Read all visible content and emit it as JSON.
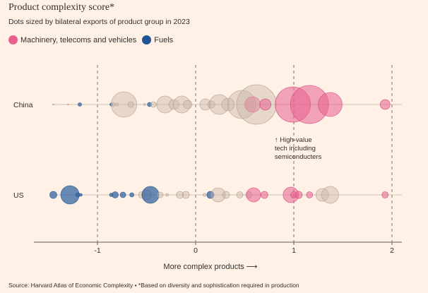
{
  "title": "Product complexity score*",
  "subtitle": "Dots sized by bilateral exports of product group in 2023",
  "source": "Source: Harvard Atlas of Economic Complexity • *Based on diversity and sophistication required in production",
  "colors": {
    "machinery": "#e8608f",
    "fuels": "#3566a0",
    "other": "#c9b8a8",
    "grid": "#7b7470",
    "axis": "#66605c",
    "background": "#fff1e5"
  },
  "legend": [
    {
      "label": "Machinery, telecoms and vehicles",
      "color": "#e8608f"
    },
    {
      "label": "Fuels",
      "color": "#1f5596"
    }
  ],
  "chart_data": {
    "type": "scatter",
    "title": "Product complexity score*",
    "xlabel": "More complex products ⟶",
    "ylabel": "",
    "xlim": [
      -1.6,
      2.1
    ],
    "xticks": [
      -1,
      0,
      1,
      2
    ],
    "xtick_labels": [
      "-1",
      "0",
      "1",
      "2"
    ],
    "grid": "vertical dashed",
    "legend_position": "top-left",
    "categories": [
      "China",
      "US"
    ],
    "annotation": {
      "text": [
        "↑ High-value",
        "tech including",
        "semiconducters"
      ],
      "x": 0.97,
      "category": "China"
    },
    "series": [
      {
        "category": "China",
        "points": [
          {
            "x": -1.45,
            "r": 0.8,
            "group": "other"
          },
          {
            "x": -1.3,
            "r": 0.8,
            "group": "other"
          },
          {
            "x": -1.18,
            "r": 2.5,
            "group": "fuels"
          },
          {
            "x": -0.86,
            "r": 2,
            "group": "fuels"
          },
          {
            "x": -0.84,
            "r": 3,
            "group": "other"
          },
          {
            "x": -0.8,
            "r": 2,
            "group": "other"
          },
          {
            "x": -0.73,
            "r": 18,
            "group": "other"
          },
          {
            "x": -0.66,
            "r": 4,
            "group": "other"
          },
          {
            "x": -0.52,
            "r": 1.5,
            "group": "other"
          },
          {
            "x": -0.47,
            "r": 3,
            "group": "fuels"
          },
          {
            "x": -0.43,
            "r": 4,
            "group": "other"
          },
          {
            "x": -0.31,
            "r": 12,
            "group": "other"
          },
          {
            "x": -0.22,
            "r": 7,
            "group": "other"
          },
          {
            "x": -0.14,
            "r": 12,
            "group": "other"
          },
          {
            "x": -0.08,
            "r": 6,
            "group": "other"
          },
          {
            "x": 0.1,
            "r": 8,
            "group": "other"
          },
          {
            "x": 0.16,
            "r": 5,
            "group": "other"
          },
          {
            "x": 0.24,
            "r": 14,
            "group": "other"
          },
          {
            "x": 0.33,
            "r": 9,
            "group": "other"
          },
          {
            "x": 0.47,
            "r": 20,
            "group": "other"
          },
          {
            "x": 0.58,
            "r": 11,
            "group": "machinery"
          },
          {
            "x": 0.62,
            "r": 28,
            "group": "other"
          },
          {
            "x": 0.71,
            "r": 8,
            "group": "machinery"
          },
          {
            "x": 0.99,
            "r": 25,
            "group": "machinery"
          },
          {
            "x": 1.16,
            "r": 27,
            "group": "machinery"
          },
          {
            "x": 1.37,
            "r": 17,
            "group": "machinery"
          },
          {
            "x": 1.93,
            "r": 7,
            "group": "machinery"
          }
        ]
      },
      {
        "category": "US",
        "points": [
          {
            "x": -1.45,
            "r": 5,
            "group": "fuels"
          },
          {
            "x": -1.28,
            "r": 13,
            "group": "fuels"
          },
          {
            "x": -1.2,
            "r": 3,
            "group": "fuels"
          },
          {
            "x": -1.17,
            "r": 2,
            "group": "fuels"
          },
          {
            "x": -0.86,
            "r": 2.5,
            "group": "fuels"
          },
          {
            "x": -0.82,
            "r": 4.5,
            "group": "fuels"
          },
          {
            "x": -0.74,
            "r": 4,
            "group": "fuels"
          },
          {
            "x": -0.65,
            "r": 3,
            "group": "fuels"
          },
          {
            "x": -0.55,
            "r": 4.5,
            "group": "other"
          },
          {
            "x": -0.5,
            "r": 7,
            "group": "other"
          },
          {
            "x": -0.46,
            "r": 12,
            "group": "fuels"
          },
          {
            "x": -0.36,
            "r": 4,
            "group": "other"
          },
          {
            "x": -0.29,
            "r": 2,
            "group": "other"
          },
          {
            "x": -0.16,
            "r": 5,
            "group": "other"
          },
          {
            "x": -0.1,
            "r": 5,
            "group": "other"
          },
          {
            "x": 0.09,
            "r": 2,
            "group": "other"
          },
          {
            "x": 0.15,
            "r": 5,
            "group": "fuels"
          },
          {
            "x": 0.23,
            "r": 10,
            "group": "other"
          },
          {
            "x": 0.31,
            "r": 5,
            "group": "other"
          },
          {
            "x": 0.45,
            "r": 4.5,
            "group": "other"
          },
          {
            "x": 0.54,
            "r": 4.5,
            "group": "other"
          },
          {
            "x": 0.59,
            "r": 10,
            "group": "machinery"
          },
          {
            "x": 0.7,
            "r": 5,
            "group": "machinery"
          },
          {
            "x": 0.97,
            "r": 11,
            "group": "machinery"
          },
          {
            "x": 1.0,
            "r": 4.5,
            "group": "machinery"
          },
          {
            "x": 1.05,
            "r": 5,
            "group": "machinery"
          },
          {
            "x": 1.16,
            "r": 4.5,
            "group": "machinery"
          },
          {
            "x": 1.29,
            "r": 9,
            "group": "other"
          },
          {
            "x": 1.37,
            "r": 12,
            "group": "other"
          },
          {
            "x": 1.93,
            "r": 4.5,
            "group": "machinery"
          }
        ]
      }
    ]
  }
}
